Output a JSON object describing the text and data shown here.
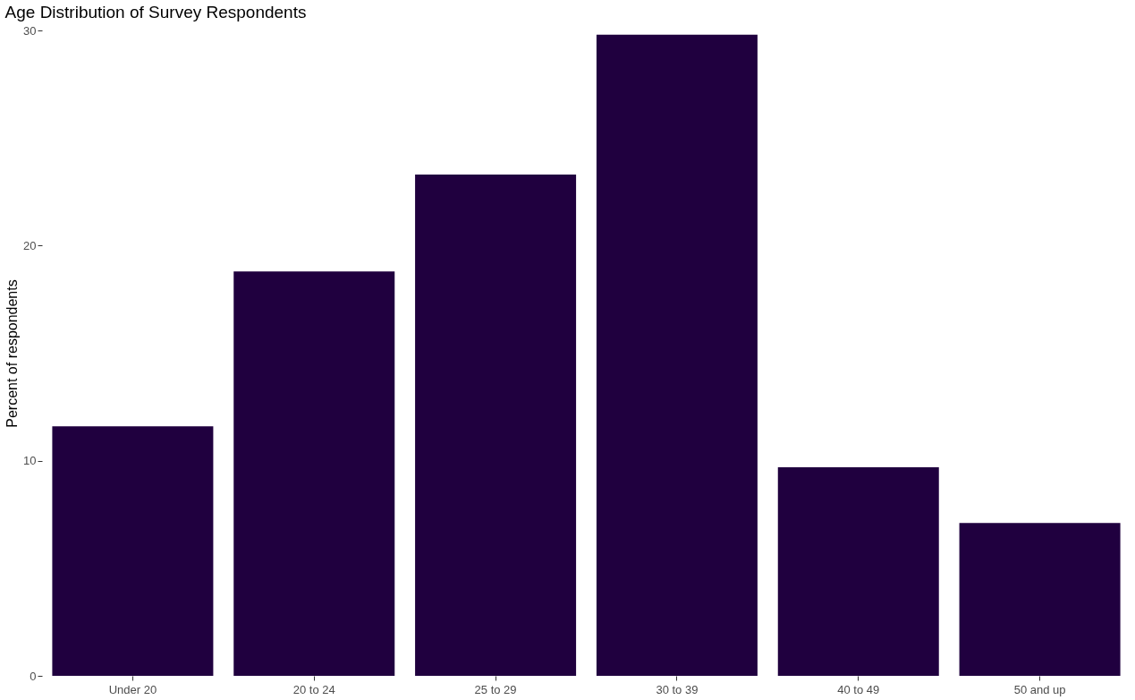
{
  "chart_data": {
    "type": "bar",
    "title": "Age Distribution of Survey Respondents",
    "ylabel": "Percent of respondents",
    "categories": [
      "Under 20",
      "20 to 24",
      "25 to 29",
      "30 to 39",
      "40 to 49",
      "50 and up"
    ],
    "values": [
      11.6,
      18.8,
      23.3,
      29.8,
      9.7,
      7.1
    ],
    "color": "#20003f",
    "ylim": [
      0,
      30
    ],
    "yticks": [
      0,
      10,
      20,
      30
    ],
    "grid": false
  }
}
